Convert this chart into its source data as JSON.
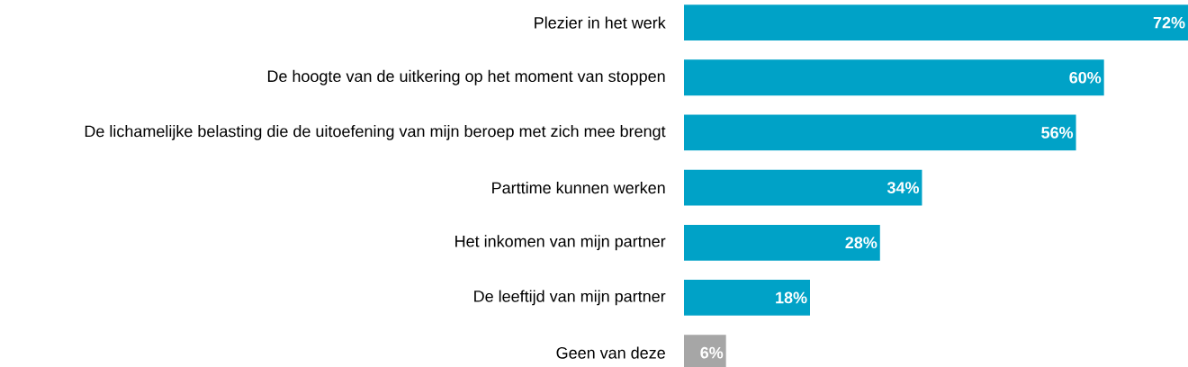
{
  "chart_data": {
    "type": "bar",
    "orientation": "horizontal",
    "categories": [
      "Plezier in het werk",
      "De hoogte van de uitkering op het moment van stoppen",
      "De lichamelijke belasting die de uitoefening van mijn beroep met zich mee brengt",
      "Parttime kunnen werken",
      "Het inkomen van mijn partner",
      "De leeftijd van mijn partner",
      "Geen van deze"
    ],
    "values": [
      72,
      60,
      56,
      34,
      28,
      18,
      6
    ],
    "value_labels": [
      "72%",
      "60%",
      "56%",
      "34%",
      "28%",
      "18%",
      "6%"
    ],
    "colors": [
      "#00a2c7",
      "#00a2c7",
      "#00a2c7",
      "#00a2c7",
      "#00a2c7",
      "#00a2c7",
      "#a6a6a6"
    ]
  }
}
